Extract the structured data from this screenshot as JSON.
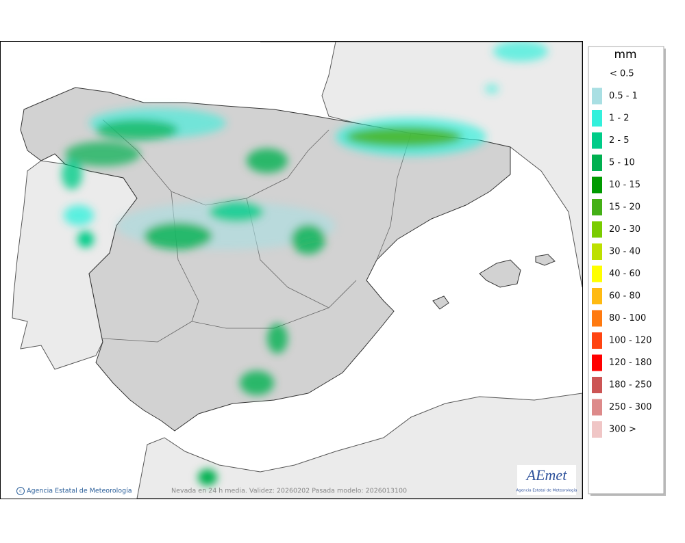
{
  "legend": {
    "title": "mm",
    "items": [
      {
        "label": "< 0.5"
      },
      {
        "label": "0.5 - 1",
        "color": "#a9dfe3"
      },
      {
        "label": "1 - 2",
        "color": "#33f0dc"
      },
      {
        "label": "2 - 5",
        "color": "#00cc88"
      },
      {
        "label": "5 - 10",
        "color": "#00b050"
      },
      {
        "label": "10 - 15",
        "color": "#009a00"
      },
      {
        "label": "15 - 20",
        "color": "#44b016"
      },
      {
        "label": "20 - 30",
        "color": "#7acc00"
      },
      {
        "label": "30 - 40",
        "color": "#bde000"
      },
      {
        "label": "40 - 60",
        "color": "#ffff00"
      },
      {
        "label": "60 - 80",
        "color": "#ffba12"
      },
      {
        "label": "80 - 100",
        "color": "#ff7a10"
      },
      {
        "label": "100 - 120",
        "color": "#ff4412"
      },
      {
        "label": "120 - 180",
        "color": "#ff0000"
      },
      {
        "label": "180 - 250",
        "color": "#cc5555"
      },
      {
        "label": "250 - 300",
        "color": "#dd8a8a"
      },
      {
        "label": "300 >",
        "color": "#f0c6c6"
      }
    ]
  },
  "footer": {
    "credit": "Agencia Estatal de Meteorología",
    "caption": "Nevada en 24 h media. Validez: 20260202 Pasada modelo: 2026013100"
  },
  "logo": {
    "name": "AEmet",
    "subtitle": "Agencia Estatal de Meteorología"
  }
}
